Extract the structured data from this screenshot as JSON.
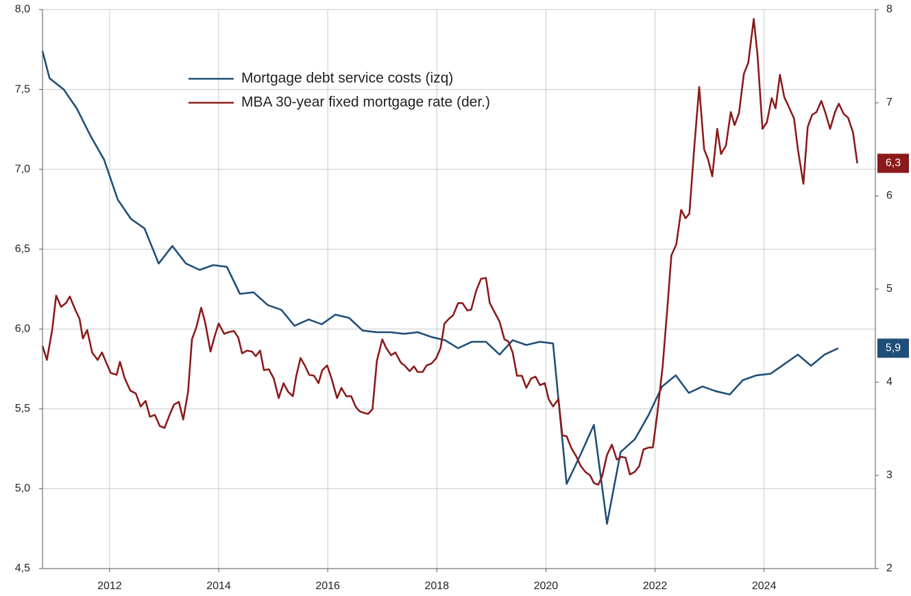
{
  "chart_data": {
    "type": "line",
    "xlim": [
      2010.77,
      2026.04
    ],
    "xticks": [
      2012,
      2014,
      2016,
      2018,
      2020,
      2022,
      2024
    ],
    "ylim": [
      4.5,
      8.0
    ],
    "yticks": [
      {
        "value": 4.5,
        "label": "4,5"
      },
      {
        "value": 5.0,
        "label": "5,0"
      },
      {
        "value": 5.5,
        "label": "5,5"
      },
      {
        "value": 6.0,
        "label": "6,0"
      },
      {
        "value": 6.5,
        "label": "6,5"
      },
      {
        "value": 7.0,
        "label": "7,0"
      },
      {
        "value": 7.5,
        "label": "7,5"
      },
      {
        "value": 8.0,
        "label": "8,0"
      }
    ],
    "y2lim": [
      2,
      8
    ],
    "y2ticks": [
      2,
      3,
      4,
      5,
      6,
      7,
      8
    ],
    "grid": true,
    "legend": "upper center",
    "series": [
      {
        "name": "Mortgage debt service costs (izq)",
        "color": "#1f4e79",
        "end_label": "5,9",
        "x": [
          2010.77,
          2010.9,
          2011.16,
          2011.4,
          2011.65,
          2011.9,
          2012.15,
          2012.39,
          2012.64,
          2012.9,
          2013.15,
          2013.4,
          2013.65,
          2013.9,
          2014.15,
          2014.39,
          2014.64,
          2014.9,
          2015.15,
          2015.39,
          2015.65,
          2015.89,
          2016.14,
          2016.39,
          2016.64,
          2016.9,
          2017.15,
          2017.4,
          2017.65,
          2017.9,
          2018.15,
          2018.39,
          2018.64,
          2018.9,
          2019.15,
          2019.39,
          2019.64,
          2019.89,
          2020.13,
          2020.38,
          2020.63,
          2020.88,
          2021.12,
          2021.37,
          2021.63,
          2021.88,
          2022.13,
          2022.38,
          2022.62,
          2022.87,
          2023.12,
          2023.37,
          2023.61,
          2023.86,
          2024.12,
          2024.37,
          2024.62,
          2024.86,
          2025.11,
          2025.36
        ],
        "values": [
          7.74,
          7.57,
          7.5,
          7.38,
          7.21,
          7.06,
          6.81,
          6.69,
          6.63,
          6.41,
          6.52,
          6.41,
          6.37,
          6.4,
          6.39,
          6.22,
          6.23,
          6.15,
          6.12,
          6.02,
          6.06,
          6.03,
          6.09,
          6.07,
          5.99,
          5.98,
          5.98,
          5.97,
          5.98,
          5.95,
          5.93,
          5.88,
          5.92,
          5.92,
          5.84,
          5.93,
          5.9,
          5.92,
          5.91,
          5.03,
          5.21,
          5.4,
          4.78,
          5.23,
          5.31,
          5.46,
          5.64,
          5.71,
          5.6,
          5.64,
          5.61,
          5.59,
          5.68,
          5.71,
          5.72,
          5.78,
          5.84,
          5.77,
          5.84,
          5.88
        ]
      },
      {
        "name": "MBA 30-year fixed mortgage rate (der.)",
        "color": "#8b1a1a",
        "axis": "y2",
        "end_label": "6,3",
        "x": [
          2010.77,
          2010.85,
          2010.95,
          2011.02,
          2011.11,
          2011.2,
          2011.27,
          2011.37,
          2011.45,
          2011.51,
          2011.59,
          2011.68,
          2011.78,
          2011.86,
          2011.94,
          2012.02,
          2012.13,
          2012.19,
          2012.28,
          2012.38,
          2012.48,
          2012.57,
          2012.66,
          2012.74,
          2012.83,
          2012.92,
          2013.01,
          2013.1,
          2013.18,
          2013.27,
          2013.35,
          2013.44,
          2013.51,
          2013.59,
          2013.68,
          2013.75,
          2013.85,
          2013.93,
          2014.0,
          2014.1,
          2014.19,
          2014.28,
          2014.36,
          2014.43,
          2014.52,
          2014.61,
          2014.68,
          2014.76,
          2014.83,
          2014.92,
          2015.01,
          2015.1,
          2015.19,
          2015.27,
          2015.36,
          2015.42,
          2015.5,
          2015.58,
          2015.66,
          2015.75,
          2015.83,
          2015.9,
          2015.99,
          2016.07,
          2016.17,
          2016.25,
          2016.34,
          2016.43,
          2016.51,
          2016.58,
          2016.67,
          2016.74,
          2016.82,
          2016.9,
          2017.0,
          2017.07,
          2017.16,
          2017.24,
          2017.34,
          2017.41,
          2017.5,
          2017.58,
          2017.65,
          2017.74,
          2017.81,
          2017.9,
          2017.99,
          2018.07,
          2018.14,
          2018.22,
          2018.3,
          2018.39,
          2018.47,
          2018.56,
          2018.63,
          2018.72,
          2018.81,
          2018.9,
          2018.97,
          2019.06,
          2019.15,
          2019.24,
          2019.31,
          2019.39,
          2019.47,
          2019.56,
          2019.64,
          2019.73,
          2019.81,
          2019.89,
          2019.98,
          2020.05,
          2020.13,
          2020.23,
          2020.3,
          2020.38,
          2020.47,
          2020.56,
          2020.63,
          2020.72,
          2020.81,
          2020.88,
          2020.96,
          2021.03,
          2021.12,
          2021.21,
          2021.3,
          2021.39,
          2021.46,
          2021.54,
          2021.63,
          2021.71,
          2021.79,
          2021.89,
          2021.96,
          2022.04,
          2022.14,
          2022.23,
          2022.3,
          2022.39,
          2022.48,
          2022.56,
          2022.63,
          2022.72,
          2022.81,
          2022.9,
          2022.97,
          2023.05,
          2023.14,
          2023.21,
          2023.3,
          2023.39,
          2023.46,
          2023.54,
          2023.63,
          2023.71,
          2023.81,
          2023.88,
          2023.97,
          2024.05,
          2024.14,
          2024.21,
          2024.29,
          2024.37,
          2024.45,
          2024.55,
          2024.62,
          2024.72,
          2024.8,
          2024.88,
          2024.96,
          2025.05,
          2025.12,
          2025.21,
          2025.3,
          2025.37,
          2025.46,
          2025.54,
          2025.63,
          2025.71
        ],
        "values": [
          4.39,
          4.24,
          4.57,
          4.93,
          4.81,
          4.85,
          4.92,
          4.78,
          4.68,
          4.47,
          4.56,
          4.32,
          4.24,
          4.32,
          4.21,
          4.1,
          4.08,
          4.22,
          4.04,
          3.91,
          3.88,
          3.74,
          3.8,
          3.63,
          3.65,
          3.53,
          3.51,
          3.65,
          3.76,
          3.79,
          3.6,
          3.9,
          4.46,
          4.59,
          4.8,
          4.65,
          4.33,
          4.5,
          4.63,
          4.52,
          4.54,
          4.55,
          4.48,
          4.31,
          4.34,
          4.33,
          4.28,
          4.34,
          4.13,
          4.14,
          4.04,
          3.83,
          3.99,
          3.9,
          3.85,
          4.06,
          4.26,
          4.18,
          4.08,
          4.07,
          3.99,
          4.13,
          4.18,
          4.04,
          3.83,
          3.94,
          3.85,
          3.85,
          3.74,
          3.69,
          3.67,
          3.66,
          3.71,
          4.23,
          4.46,
          4.37,
          4.29,
          4.32,
          4.21,
          4.18,
          4.12,
          4.17,
          4.11,
          4.11,
          4.18,
          4.2,
          4.26,
          4.37,
          4.63,
          4.68,
          4.72,
          4.85,
          4.85,
          4.77,
          4.78,
          4.98,
          5.11,
          5.12,
          4.85,
          4.75,
          4.65,
          4.46,
          4.44,
          4.32,
          4.07,
          4.07,
          3.94,
          4.04,
          4.06,
          3.97,
          3.99,
          3.82,
          3.74,
          3.82,
          3.43,
          3.42,
          3.29,
          3.2,
          3.11,
          3.04,
          3.0,
          2.92,
          2.9,
          2.99,
          3.22,
          3.33,
          3.17,
          3.2,
          3.19,
          3.01,
          3.04,
          3.1,
          3.28,
          3.3,
          3.3,
          3.65,
          4.17,
          4.82,
          5.36,
          5.48,
          5.85,
          5.76,
          5.81,
          6.52,
          7.17,
          6.5,
          6.4,
          6.21,
          6.72,
          6.45,
          6.54,
          6.9,
          6.76,
          6.89,
          7.31,
          7.43,
          7.9,
          7.51,
          6.72,
          6.79,
          7.05,
          6.94,
          7.3,
          7.06,
          6.96,
          6.83,
          6.5,
          6.13,
          6.74,
          6.87,
          6.9,
          7.02,
          6.9,
          6.72,
          6.9,
          6.99,
          6.88,
          6.84,
          6.68,
          6.35
        ]
      }
    ]
  }
}
